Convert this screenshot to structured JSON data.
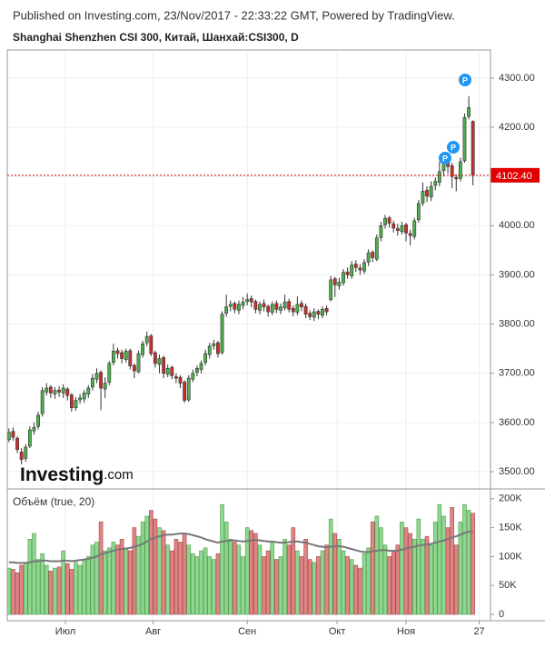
{
  "header": {
    "published": "Published on Investing.com, 23/Nov/2017 - 22:33:22 GMT, Powered by TradingView.",
    "logo_name": "Investing",
    "logo_suffix": ".com",
    "event_label": "P"
  },
  "chart_data": [
    {
      "type": "candlestick",
      "title": "Shanghai Shenzhen CSI 300, Китай, Шанхай:CSI300, D",
      "open": [
        3565,
        3582,
        3568,
        3540,
        3527,
        3552,
        3583,
        3592,
        3618,
        3662,
        3672,
        3658,
        3666,
        3660,
        3668,
        3656,
        3630,
        3646,
        3648,
        3658,
        3672,
        3688,
        3702,
        3668,
        3682,
        3722,
        3746,
        3742,
        3728,
        3746,
        3716,
        3703,
        3738,
        3762,
        3776,
        3742,
        3718,
        3732,
        3698,
        3712,
        3693,
        3692,
        3682,
        3646,
        3688,
        3702,
        3708,
        3722,
        3738,
        3756,
        3762,
        3742,
        3822,
        3836,
        3842,
        3828,
        3838,
        3846,
        3852,
        3846,
        3828,
        3842,
        3836,
        3824,
        3842,
        3828,
        3833,
        3846,
        3832,
        3824,
        3842,
        3836,
        3822,
        3814,
        3826,
        3818,
        3832,
        3850,
        3892,
        3878,
        3884,
        3906,
        3898,
        3922,
        3914,
        3908,
        3926,
        3946,
        3932,
        3976,
        4002,
        4016,
        4004,
        3994,
        3988,
        4002,
        3984,
        3978,
        4012,
        4046,
        4072,
        4058,
        4082,
        4088,
        4112,
        4128,
        4122,
        4098,
        4096,
        4132,
        4222,
        4212
      ],
      "high": [
        3588,
        3590,
        3572,
        3548,
        3556,
        3592,
        3600,
        3622,
        3672,
        3680,
        3676,
        3672,
        3674,
        3678,
        3672,
        3660,
        3652,
        3658,
        3666,
        3676,
        3698,
        3710,
        3706,
        3692,
        3725,
        3760,
        3752,
        3748,
        3750,
        3750,
        3720,
        3746,
        3766,
        3785,
        3780,
        3746,
        3738,
        3736,
        3718,
        3716,
        3700,
        3696,
        3686,
        3696,
        3708,
        3716,
        3726,
        3748,
        3762,
        3768,
        3766,
        3826,
        3860,
        3848,
        3846,
        3848,
        3855,
        3862,
        3858,
        3850,
        3846,
        3850,
        3840,
        3846,
        3848,
        3842,
        3860,
        3852,
        3838,
        3856,
        3848,
        3842,
        3828,
        3832,
        3830,
        3836,
        3838,
        3898,
        3896,
        3894,
        3912,
        3915,
        3928,
        3930,
        3922,
        3932,
        3952,
        3950,
        3982,
        4008,
        4022,
        4020,
        4010,
        4004,
        4008,
        4006,
        3992,
        4016,
        4052,
        4088,
        4080,
        4090,
        4098,
        4130,
        4138,
        4134,
        4128,
        4104,
        4138,
        4228,
        4263,
        4214
      ],
      "low": [
        3560,
        3563,
        3538,
        3515,
        3520,
        3548,
        3575,
        3586,
        3612,
        3655,
        3650,
        3648,
        3652,
        3650,
        3645,
        3622,
        3624,
        3638,
        3640,
        3650,
        3665,
        3680,
        3625,
        3650,
        3676,
        3716,
        3730,
        3720,
        3722,
        3708,
        3690,
        3700,
        3732,
        3755,
        3735,
        3712,
        3700,
        3690,
        3692,
        3688,
        3680,
        3670,
        3640,
        3642,
        3682,
        3694,
        3700,
        3716,
        3730,
        3748,
        3732,
        3738,
        3815,
        3826,
        3822,
        3820,
        3830,
        3838,
        3834,
        3822,
        3820,
        3826,
        3815,
        3818,
        3822,
        3820,
        3828,
        3824,
        3816,
        3818,
        3826,
        3812,
        3808,
        3806,
        3810,
        3812,
        3818,
        3846,
        3855,
        3870,
        3878,
        3892,
        3892,
        3906,
        3900,
        3902,
        3918,
        3926,
        3928,
        3968,
        3994,
        3996,
        3986,
        3980,
        3982,
        3968,
        3960,
        3972,
        4006,
        4040,
        4048,
        4050,
        4072,
        4080,
        4100,
        4106,
        4076,
        4070,
        4090,
        4128,
        4216,
        4082
      ],
      "close": [
        3580,
        3570,
        3545,
        3525,
        3550,
        3585,
        3590,
        3615,
        3665,
        3670,
        3660,
        3665,
        3662,
        3670,
        3655,
        3630,
        3645,
        3650,
        3660,
        3670,
        3690,
        3700,
        3670,
        3680,
        3720,
        3745,
        3740,
        3730,
        3745,
        3715,
        3705,
        3740,
        3760,
        3775,
        3740,
        3720,
        3730,
        3700,
        3710,
        3695,
        3690,
        3680,
        3645,
        3690,
        3700,
        3710,
        3720,
        3740,
        3755,
        3760,
        3740,
        3820,
        3835,
        3840,
        3830,
        3840,
        3845,
        3850,
        3845,
        3830,
        3840,
        3835,
        3825,
        3840,
        3830,
        3835,
        3845,
        3830,
        3825,
        3840,
        3835,
        3820,
        3815,
        3825,
        3820,
        3830,
        3825,
        3890,
        3880,
        3885,
        3905,
        3900,
        3920,
        3915,
        3910,
        3925,
        3945,
        3935,
        3975,
        4000,
        4015,
        4005,
        3995,
        3990,
        4000,
        3985,
        3980,
        4010,
        4045,
        4070,
        4060,
        4080,
        4090,
        4110,
        4130,
        4120,
        4100,
        4095,
        4130,
        4220,
        4240,
        4102.4
      ],
      "up_color": "#4cae4c",
      "down_color": "#c9302c",
      "wick_color": "#333333",
      "ylim": [
        3465,
        4357
      ],
      "yticks": [
        {
          "value": 3500,
          "label": "3500.00"
        },
        {
          "value": 3600,
          "label": "3600.00"
        },
        {
          "value": 3700,
          "label": "3700.00"
        },
        {
          "value": 3800,
          "label": "3800.00"
        },
        {
          "value": 3900,
          "label": "3900.00"
        },
        {
          "value": 4000,
          "label": "4000.00"
        },
        {
          "value": 4100,
          "label": "4100.00"
        },
        {
          "value": 4200,
          "label": "4200.00"
        },
        {
          "value": 4300,
          "label": "4300.00"
        }
      ],
      "xlim": [
        -0.4,
        115.2
      ],
      "xticks": [
        {
          "value": 13.5,
          "label": "Июл"
        },
        {
          "value": 34.5,
          "label": "Авг"
        },
        {
          "value": 57,
          "label": "Сен"
        },
        {
          "value": 78.5,
          "label": "Окт"
        },
        {
          "value": 95,
          "label": "Ноя"
        },
        {
          "value": 112.5,
          "label": "27"
        }
      ],
      "grid": true,
      "last_value_label": "4102.40",
      "last_color": "#e00000"
    },
    {
      "type": "bar",
      "title": "Объём (true, 20)",
      "values": [
        80000,
        78000,
        72000,
        85000,
        90000,
        130000,
        140000,
        95000,
        105000,
        85000,
        75000,
        80000,
        82000,
        110000,
        88000,
        78000,
        90000,
        85000,
        95000,
        100000,
        120000,
        125000,
        160000,
        110000,
        115000,
        125000,
        120000,
        130000,
        115000,
        110000,
        150000,
        135000,
        160000,
        170000,
        180000,
        165000,
        150000,
        145000,
        120000,
        110000,
        130000,
        125000,
        140000,
        120000,
        105000,
        100000,
        110000,
        115000,
        100000,
        95000,
        105000,
        190000,
        160000,
        130000,
        125000,
        120000,
        100000,
        150000,
        145000,
        140000,
        120000,
        100000,
        110000,
        125000,
        95000,
        100000,
        130000,
        120000,
        150000,
        110000,
        100000,
        130000,
        95000,
        90000,
        100000,
        110000,
        120000,
        165000,
        140000,
        130000,
        110000,
        100000,
        95000,
        85000,
        80000,
        105000,
        115000,
        160000,
        170000,
        150000,
        120000,
        100000,
        110000,
        120000,
        160000,
        150000,
        140000,
        130000,
        165000,
        130000,
        135000,
        120000,
        160000,
        190000,
        170000,
        150000,
        185000,
        120000,
        160000,
        190000,
        180000,
        175000
      ],
      "ma_values": [
        90000,
        90000,
        89000,
        89000,
        89000,
        90000,
        92000,
        92000,
        93000,
        93000,
        92000,
        92000,
        92000,
        93000,
        93000,
        92000,
        93000,
        94000,
        95000,
        96000,
        98000,
        100000,
        104000,
        106000,
        108000,
        110000,
        112000,
        113000,
        114000,
        115000,
        117000,
        119000,
        122000,
        126000,
        130000,
        133000,
        135000,
        137000,
        138000,
        138000,
        139000,
        140000,
        140000,
        139000,
        137000,
        135000,
        133000,
        130000,
        128000,
        126000,
        124000,
        126000,
        127000,
        128000,
        128000,
        127000,
        126000,
        127000,
        128000,
        129000,
        128000,
        127000,
        126000,
        126000,
        125000,
        124000,
        124000,
        125000,
        126000,
        126000,
        125000,
        124000,
        122000,
        120000,
        118000,
        117000,
        116000,
        117000,
        118000,
        118000,
        117000,
        115000,
        113000,
        111000,
        109000,
        108000,
        108000,
        109000,
        110000,
        111000,
        111000,
        110000,
        110000,
        110000,
        112000,
        114000,
        116000,
        117000,
        119000,
        120000,
        121000,
        122000,
        124000,
        126000,
        128000,
        130000,
        133000,
        135000,
        138000,
        141000,
        143000,
        144000
      ],
      "up_color": "#8fd68f",
      "up_stroke": "#4f9f4f",
      "down_color": "#df8585",
      "down_stroke": "#a84646",
      "ma_color": "#777777",
      "ylim": [
        -11000,
        217000
      ],
      "yticks": [
        0,
        {
          "value": 50000,
          "label": "50K"
        },
        {
          "value": 100000,
          "label": "100K"
        },
        {
          "value": 150000,
          "label": "150K"
        },
        {
          "value": 200000,
          "label": "200K"
        }
      ]
    }
  ]
}
